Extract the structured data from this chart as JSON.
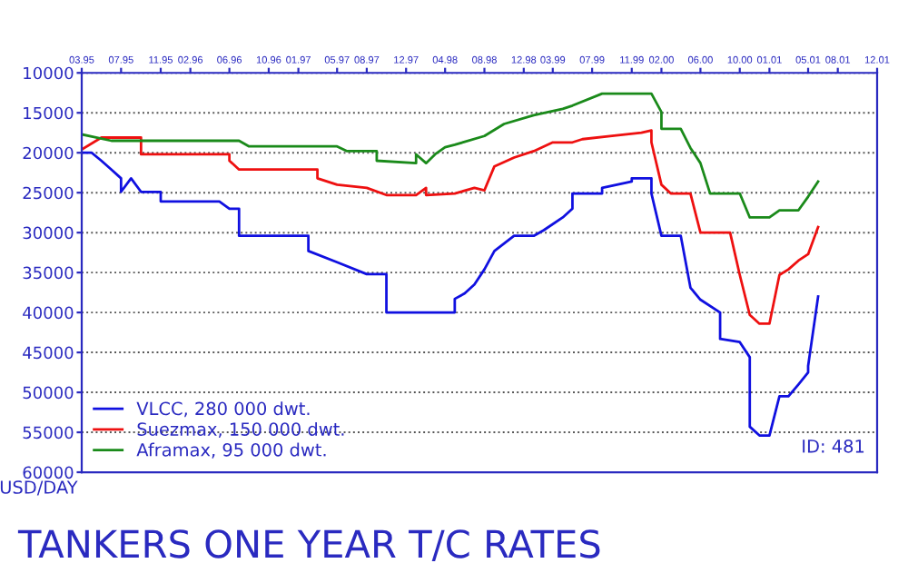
{
  "chart_data": {
    "type": "line",
    "title": "TANKERS ONE YEAR T/C RATES",
    "ylabel": "USD/DAY",
    "annotations": [
      "ID: 481"
    ],
    "xlim": [
      "1995-03",
      "2001-12"
    ],
    "xticks": [
      {
        "value": "1995-03",
        "label": "03.95"
      },
      {
        "value": "1995-07",
        "label": "07.95"
      },
      {
        "value": "1995-11",
        "label": "11.95"
      },
      {
        "value": "1996-02",
        "label": "02.96"
      },
      {
        "value": "1996-06",
        "label": "06.96"
      },
      {
        "value": "1996-10",
        "label": "10.96"
      },
      {
        "value": "1997-01",
        "label": "01.97"
      },
      {
        "value": "1997-05",
        "label": "05.97"
      },
      {
        "value": "1997-08",
        "label": "08.97"
      },
      {
        "value": "1997-12",
        "label": "12.97"
      },
      {
        "value": "1998-04",
        "label": "04.98"
      },
      {
        "value": "1998-08",
        "label": "08.98"
      },
      {
        "value": "1998-12",
        "label": "12.98"
      },
      {
        "value": "1999-03",
        "label": "03.99"
      },
      {
        "value": "1999-07",
        "label": "07.99"
      },
      {
        "value": "1999-11",
        "label": "11.99"
      },
      {
        "value": "2000-02",
        "label": "02.00"
      },
      {
        "value": "2000-06",
        "label": "06.00"
      },
      {
        "value": "2000-10",
        "label": "10.00"
      },
      {
        "value": "2001-01",
        "label": "01.01"
      },
      {
        "value": "2001-05",
        "label": "05.01"
      },
      {
        "value": "2001-08",
        "label": "08.01"
      },
      {
        "value": "2001-12",
        "label": "12.01"
      }
    ],
    "ylim": [
      60000,
      10000
    ],
    "yticks": [
      10000,
      15000,
      20000,
      25000,
      30000,
      35000,
      40000,
      45000,
      50000,
      55000,
      60000
    ],
    "grid": "y",
    "legend": "bottom left",
    "marker": "none",
    "line_style": "solid",
    "series": [
      {
        "name": "VLCC, 280 000 dwt.",
        "color": "#1010e0",
        "x": [
          "1995-03",
          "1995-04",
          "1995-05",
          "1995-06",
          "1995-07",
          "1995-07",
          "1995-08",
          "1995-09",
          "1995-11",
          "1995-11",
          "1996-05",
          "1996-06",
          "1996-07",
          "1996-07",
          "1997-02",
          "1997-02",
          "1997-05",
          "1997-08",
          "1997-10",
          "1997-10",
          "1998-05",
          "1998-05",
          "1998-06",
          "1998-07",
          "1998-08",
          "1998-09",
          "1998-11",
          "1999-01",
          "1999-02",
          "1999-04",
          "1999-05",
          "1999-05",
          "1999-08",
          "1999-08",
          "1999-11",
          "1999-11",
          "2000-01",
          "2000-01",
          "2000-02",
          "2000-04",
          "2000-05",
          "2000-06",
          "2000-08",
          "2000-08",
          "2000-10",
          "2000-11",
          "2000-11",
          "2000-12",
          "2001-01",
          "2001-02",
          "2001-03",
          "2001-04",
          "2001-05",
          "2001-05",
          "2001-06"
        ],
        "values": [
          20000,
          20000,
          21000,
          22100,
          23200,
          24900,
          23200,
          24900,
          24900,
          26100,
          26100,
          27000,
          27000,
          30400,
          30400,
          32300,
          33700,
          35200,
          35200,
          40000,
          40000,
          38300,
          37600,
          36500,
          34600,
          32300,
          30400,
          30400,
          29700,
          28100,
          27000,
          25100,
          25100,
          24400,
          23600,
          23200,
          23200,
          25100,
          30400,
          30400,
          36900,
          38400,
          40000,
          43300,
          43700,
          45600,
          54300,
          55400,
          55400,
          50500,
          50500,
          49000,
          47500,
          46700,
          38000
        ]
      },
      {
        "name": "Suezmax, 150 000 dwt.",
        "color": "#ee1010",
        "x": [
          "1995-03",
          "1995-05",
          "1995-09",
          "1995-09",
          "1996-06",
          "1996-06",
          "1996-07",
          "1997-03",
          "1997-03",
          "1997-05",
          "1997-08",
          "1997-10",
          "1998-01",
          "1998-02",
          "1998-02",
          "1998-05",
          "1998-07",
          "1998-08",
          "1998-09",
          "1998-11",
          "1999-01",
          "1999-03",
          "1999-05",
          "1999-06",
          "1999-09",
          "1999-12",
          "2000-01",
          "2000-01",
          "2000-02",
          "2000-03",
          "2000-05",
          "2000-06",
          "2000-09",
          "2000-10",
          "2000-11",
          "2000-12",
          "2001-01",
          "2001-02",
          "2001-03",
          "2001-04",
          "2001-05",
          "2001-06"
        ],
        "values": [
          19600,
          18100,
          18100,
          20200,
          20200,
          21000,
          22100,
          22100,
          23200,
          24000,
          24400,
          25300,
          25300,
          24400,
          25300,
          25100,
          24400,
          24700,
          21700,
          20600,
          19800,
          18700,
          18700,
          18300,
          17900,
          17500,
          17200,
          18700,
          24000,
          25100,
          25100,
          30000,
          30000,
          35300,
          40300,
          41400,
          41400,
          35300,
          34600,
          33500,
          32700,
          29300
        ]
      },
      {
        "name": "Aframax, 95 000 dwt.",
        "color": "#1a8a1a",
        "x": [
          "1995-03",
          "1995-06",
          "1996-07",
          "1996-08",
          "1997-05",
          "1997-06",
          "1997-09",
          "1997-09",
          "1998-01",
          "1998-01",
          "1998-02",
          "1998-03",
          "1998-04",
          "1998-05",
          "1998-08",
          "1998-10",
          "1999-01",
          "1999-04",
          "1999-05",
          "1999-08",
          "2000-01",
          "2000-02",
          "2000-02",
          "2000-04",
          "2000-05",
          "2000-06",
          "2000-07",
          "2000-10",
          "2000-11",
          "2001-01",
          "2001-02",
          "2001-04",
          "2001-05",
          "2001-06"
        ],
        "values": [
          17700,
          18500,
          18500,
          19200,
          19200,
          19800,
          19800,
          21000,
          21300,
          20200,
          21300,
          20200,
          19300,
          19000,
          17900,
          16400,
          15300,
          14500,
          14100,
          12600,
          12600,
          14900,
          17000,
          17000,
          19400,
          21300,
          25100,
          25100,
          28100,
          28100,
          27200,
          27200,
          25500,
          23600
        ]
      }
    ]
  }
}
